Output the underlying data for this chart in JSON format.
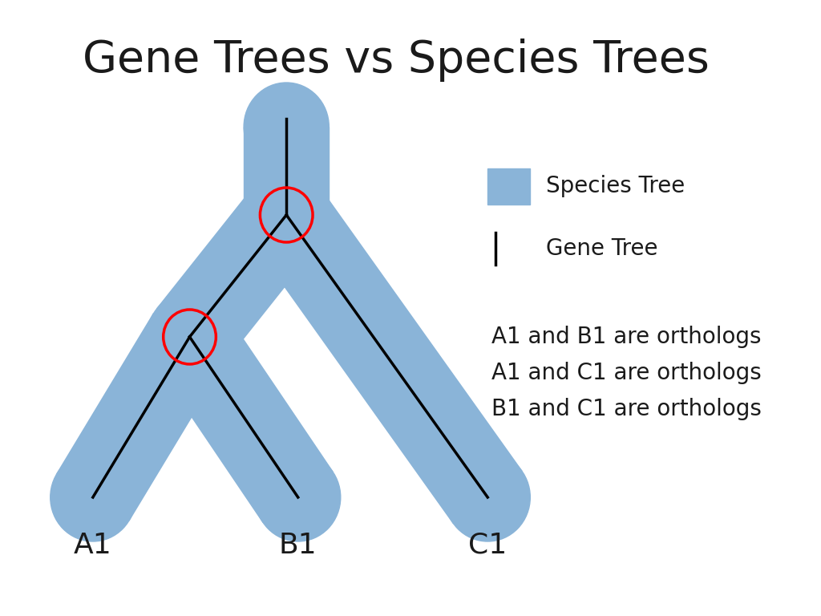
{
  "title": "Gene Trees vs Species Trees",
  "title_fontsize": 40,
  "background_color": "#ffffff",
  "species_tree_color": "#8ab4d8",
  "gene_tree_color": "#000000",
  "circle_color": "#ff0000",
  "label_fontsize": 26,
  "legend_fontsize": 20,
  "ortholog_fontsize": 20,
  "labels": [
    "A1",
    "B1",
    "C1"
  ],
  "legend_text1": "Species Tree",
  "legend_text2": "Gene Tree",
  "ortholog_lines": [
    "A1 and B1 are orthologs",
    "A1 and C1 are orthologs",
    "B1 and C1 are orthologs"
  ]
}
